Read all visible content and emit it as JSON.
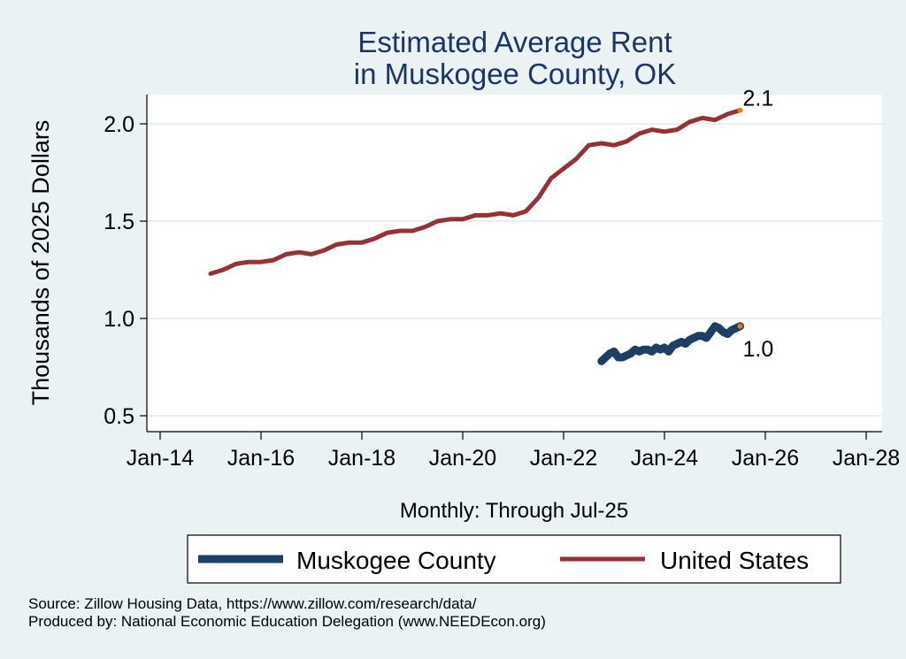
{
  "chart_data": {
    "type": "line",
    "title": [
      "Estimated Average Rent",
      "in Muskogee County, OK"
    ],
    "xlabel": "Monthly: Through Jul-25",
    "ylabel": "Thousands of 2025 Dollars",
    "x_ticks": [
      "Jan-14",
      "Jan-16",
      "Jan-18",
      "Jan-20",
      "Jan-22",
      "Jan-24",
      "Jan-26",
      "Jan-28"
    ],
    "y_ticks": [
      "0.5",
      "1.0",
      "1.5",
      "2.0"
    ],
    "ylim": [
      0.45,
      2.15
    ],
    "xlim": [
      "2013-06",
      "2028-06"
    ],
    "grid": true,
    "legend_position": "bottom",
    "series": [
      {
        "name": "Muskogee County",
        "color": "#1c3f63",
        "end_label": "1.0",
        "points": [
          [
            "2022-10",
            0.78
          ],
          [
            "2022-11",
            0.8
          ],
          [
            "2022-12",
            0.82
          ],
          [
            "2023-01",
            0.83
          ],
          [
            "2023-02",
            0.8
          ],
          [
            "2023-03",
            0.8
          ],
          [
            "2023-04",
            0.81
          ],
          [
            "2023-05",
            0.82
          ],
          [
            "2023-06",
            0.84
          ],
          [
            "2023-07",
            0.83
          ],
          [
            "2023-08",
            0.84
          ],
          [
            "2023-09",
            0.84
          ],
          [
            "2023-10",
            0.83
          ],
          [
            "2023-11",
            0.85
          ],
          [
            "2023-12",
            0.84
          ],
          [
            "2024-01",
            0.85
          ],
          [
            "2024-02",
            0.83
          ],
          [
            "2024-03",
            0.86
          ],
          [
            "2024-04",
            0.87
          ],
          [
            "2024-05",
            0.88
          ],
          [
            "2024-06",
            0.87
          ],
          [
            "2024-07",
            0.89
          ],
          [
            "2024-08",
            0.9
          ],
          [
            "2024-09",
            0.91
          ],
          [
            "2024-10",
            0.91
          ],
          [
            "2024-11",
            0.9
          ],
          [
            "2024-12",
            0.93
          ],
          [
            "2025-01",
            0.96
          ],
          [
            "2025-02",
            0.95
          ],
          [
            "2025-03",
            0.93
          ],
          [
            "2025-04",
            0.92
          ],
          [
            "2025-05",
            0.94
          ],
          [
            "2025-06",
            0.95
          ],
          [
            "2025-07",
            0.96
          ]
        ]
      },
      {
        "name": "United States",
        "color": "#963237",
        "end_label": "2.1",
        "points": [
          [
            "2015-01",
            1.23
          ],
          [
            "2015-04",
            1.25
          ],
          [
            "2015-07",
            1.28
          ],
          [
            "2015-10",
            1.29
          ],
          [
            "2016-01",
            1.29
          ],
          [
            "2016-04",
            1.3
          ],
          [
            "2016-07",
            1.33
          ],
          [
            "2016-10",
            1.34
          ],
          [
            "2017-01",
            1.33
          ],
          [
            "2017-04",
            1.35
          ],
          [
            "2017-07",
            1.38
          ],
          [
            "2017-10",
            1.39
          ],
          [
            "2018-01",
            1.39
          ],
          [
            "2018-04",
            1.41
          ],
          [
            "2018-07",
            1.44
          ],
          [
            "2018-10",
            1.45
          ],
          [
            "2019-01",
            1.45
          ],
          [
            "2019-04",
            1.47
          ],
          [
            "2019-07",
            1.5
          ],
          [
            "2019-10",
            1.51
          ],
          [
            "2020-01",
            1.51
          ],
          [
            "2020-04",
            1.53
          ],
          [
            "2020-07",
            1.53
          ],
          [
            "2020-10",
            1.54
          ],
          [
            "2021-01",
            1.53
          ],
          [
            "2021-04",
            1.55
          ],
          [
            "2021-07",
            1.62
          ],
          [
            "2021-10",
            1.72
          ],
          [
            "2022-01",
            1.77
          ],
          [
            "2022-04",
            1.82
          ],
          [
            "2022-07",
            1.89
          ],
          [
            "2022-10",
            1.9
          ],
          [
            "2023-01",
            1.89
          ],
          [
            "2023-04",
            1.91
          ],
          [
            "2023-07",
            1.95
          ],
          [
            "2023-10",
            1.97
          ],
          [
            "2024-01",
            1.96
          ],
          [
            "2024-04",
            1.97
          ],
          [
            "2024-07",
            2.01
          ],
          [
            "2024-10",
            2.03
          ],
          [
            "2025-01",
            2.02
          ],
          [
            "2025-04",
            2.05
          ],
          [
            "2025-07",
            2.07
          ]
        ]
      }
    ]
  },
  "footer": {
    "source": "Source: Zillow Housing Data, https://www.zillow.com/research/data/",
    "producer": "Produced by: National Economic Education Delegation (www.NEEDEcon.org)"
  }
}
